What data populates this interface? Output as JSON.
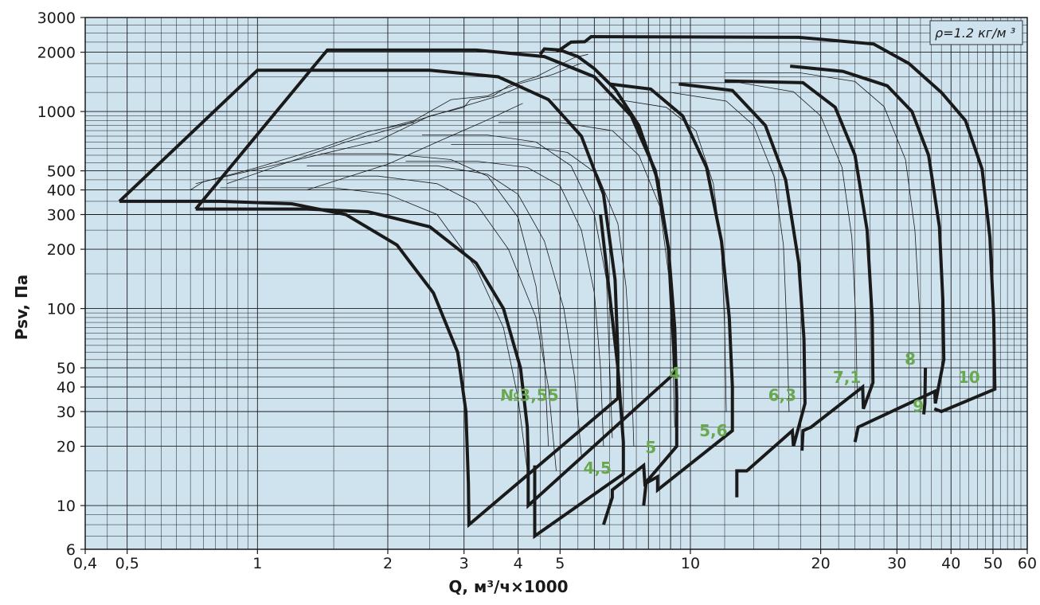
{
  "chart_data": {
    "type": "line",
    "xscale": "log",
    "yscale": "log",
    "xlim": [
      0.4,
      60
    ],
    "ylim": [
      6,
      3000
    ],
    "xlabel": "Q, м³/ч×1000",
    "ylabel": "Psv, Па",
    "annotation": "ρ=1.2 кг/м ³",
    "x_ticks": [
      {
        "v": 0.4,
        "label": "0,4"
      },
      {
        "v": 0.5,
        "label": "0,5"
      },
      {
        "v": 1,
        "label": "1"
      },
      {
        "v": 2,
        "label": "2"
      },
      {
        "v": 3,
        "label": "3"
      },
      {
        "v": 4,
        "label": "4"
      },
      {
        "v": 5,
        "label": "5"
      },
      {
        "v": 10,
        "label": "10"
      },
      {
        "v": 20,
        "label": "20"
      },
      {
        "v": 30,
        "label": "30"
      },
      {
        "v": 40,
        "label": "40"
      },
      {
        "v": 50,
        "label": "50"
      },
      {
        "v": 60,
        "label": "60"
      }
    ],
    "y_ticks": [
      {
        "v": 6,
        "label": "6"
      },
      {
        "v": 10,
        "label": "10"
      },
      {
        "v": 20,
        "label": "20"
      },
      {
        "v": 30,
        "label": "30"
      },
      {
        "v": 40,
        "label": "40"
      },
      {
        "v": 50,
        "label": "50"
      },
      {
        "v": 100,
        "label": "100"
      },
      {
        "v": 200,
        "label": "200"
      },
      {
        "v": 300,
        "label": "300"
      },
      {
        "v": 400,
        "label": "400"
      },
      {
        "v": 500,
        "label": "500"
      },
      {
        "v": 1000,
        "label": "1000"
      },
      {
        "v": 2000,
        "label": "2000"
      },
      {
        "v": 3000,
        "label": "3000"
      }
    ],
    "grid": true,
    "size_labels": [
      {
        "text": "№3,55",
        "x": 4.25,
        "y": 34
      },
      {
        "text": "4",
        "x": 9.2,
        "y": 44
      },
      {
        "text": "4,5",
        "x": 6.1,
        "y": 14.5
      },
      {
        "text": "5",
        "x": 8.1,
        "y": 18.5
      },
      {
        "text": "5,6",
        "x": 11.3,
        "y": 22.5
      },
      {
        "text": "6,3",
        "x": 16.3,
        "y": 34
      },
      {
        "text": "7,1",
        "x": 23.0,
        "y": 42
      },
      {
        "text": "8",
        "x": 32.2,
        "y": 52
      },
      {
        "text": "9",
        "x": 33.6,
        "y": 30
      },
      {
        "text": "10",
        "x": 44.0,
        "y": 42
      }
    ],
    "envelopes": [
      {
        "name": "№3,55",
        "points": [
          [
            0.48,
            350
          ],
          [
            0.82,
            350
          ],
          [
            1.2,
            340
          ],
          [
            1.6,
            300
          ],
          [
            2.1,
            210
          ],
          [
            2.55,
            120
          ],
          [
            2.9,
            60
          ],
          [
            3.03,
            30
          ],
          [
            3.07,
            13
          ],
          [
            3.08,
            8
          ],
          [
            6.8,
            35
          ],
          [
            6.8,
            60
          ],
          [
            6.7,
            140
          ],
          [
            6.3,
            380
          ],
          [
            5.6,
            750
          ],
          [
            4.7,
            1150
          ],
          [
            3.6,
            1500
          ],
          [
            2.5,
            1620
          ],
          [
            1.0,
            1620
          ],
          [
            0.48,
            350
          ]
        ]
      },
      {
        "name": "4",
        "points": [
          [
            0.72,
            320
          ],
          [
            1.3,
            320
          ],
          [
            1.8,
            310
          ],
          [
            2.5,
            260
          ],
          [
            3.2,
            170
          ],
          [
            3.7,
            100
          ],
          [
            4.05,
            50
          ],
          [
            4.2,
            25
          ],
          [
            4.22,
            17
          ],
          [
            4.22,
            10
          ],
          [
            9.2,
            47
          ],
          [
            9.1,
            90
          ],
          [
            8.9,
            200
          ],
          [
            8.3,
            500
          ],
          [
            7.3,
            950
          ],
          [
            6.0,
            1500
          ],
          [
            4.6,
            1900
          ],
          [
            3.2,
            2050
          ],
          [
            1.45,
            2050
          ],
          [
            1.35,
            1700
          ],
          [
            0.72,
            320
          ]
        ]
      },
      {
        "name": "4,5",
        "points": [
          [
            4.37,
            16
          ],
          [
            4.37,
            7
          ],
          [
            7.0,
            14.5
          ],
          [
            7.0,
            21
          ],
          [
            6.8,
            50
          ],
          [
            6.5,
            120
          ],
          [
            6.2,
            300
          ]
        ]
      },
      {
        "name": "5",
        "points": [
          [
            6.3,
            8
          ],
          [
            6.6,
            11
          ],
          [
            6.6,
            12
          ],
          [
            7.8,
            16
          ],
          [
            7.85,
            13
          ],
          [
            8.1,
            14
          ],
          [
            9.3,
            20
          ],
          [
            9.3,
            35
          ],
          [
            9.2,
            80
          ],
          [
            8.9,
            200
          ],
          [
            8.4,
            450
          ],
          [
            7.6,
            850
          ],
          [
            6.7,
            1300
          ],
          [
            6.0,
            1650
          ],
          [
            5.5,
            1900
          ],
          [
            5.0,
            2050
          ],
          [
            4.6,
            2080
          ],
          [
            4.5,
            1950
          ]
        ]
      },
      {
        "name": "5,6",
        "points": [
          [
            7.8,
            10
          ],
          [
            7.9,
            13
          ],
          [
            8.4,
            14
          ],
          [
            8.4,
            12
          ],
          [
            12.5,
            24
          ],
          [
            12.5,
            40
          ],
          [
            12.3,
            90
          ],
          [
            11.8,
            220
          ],
          [
            10.9,
            520
          ],
          [
            9.6,
            950
          ],
          [
            8.1,
            1300
          ],
          [
            6.5,
            1380
          ]
        ]
      },
      {
        "name": "6,3",
        "points": [
          [
            12.8,
            11
          ],
          [
            12.8,
            15
          ],
          [
            13.5,
            15
          ],
          [
            17.2,
            24
          ],
          [
            17.3,
            20
          ],
          [
            18.4,
            33
          ],
          [
            18.3,
            70
          ],
          [
            17.8,
            170
          ],
          [
            16.6,
            450
          ],
          [
            14.9,
            850
          ],
          [
            12.5,
            1280
          ],
          [
            9.4,
            1380
          ]
        ]
      },
      {
        "name": "7,1",
        "points": [
          [
            18.1,
            19
          ],
          [
            18.2,
            24
          ],
          [
            19.0,
            25
          ],
          [
            25.0,
            40
          ],
          [
            25.1,
            31
          ],
          [
            26.4,
            42
          ],
          [
            26.3,
            90
          ],
          [
            25.6,
            250
          ],
          [
            24.0,
            600
          ],
          [
            21.6,
            1050
          ],
          [
            18.2,
            1400
          ],
          [
            12.0,
            1430
          ]
        ]
      },
      {
        "name": "8",
        "points": [
          [
            24.0,
            21
          ],
          [
            24.4,
            25
          ],
          [
            36.7,
            38
          ],
          [
            36.8,
            33
          ],
          [
            38.5,
            55
          ],
          [
            38.3,
            110
          ],
          [
            37.6,
            260
          ],
          [
            35.5,
            600
          ],
          [
            32.5,
            1000
          ],
          [
            28.5,
            1350
          ],
          [
            22.5,
            1600
          ],
          [
            17.0,
            1700
          ]
        ]
      },
      {
        "name": "9",
        "points": [
          [
            34.6,
            29
          ],
          [
            34.8,
            33
          ],
          [
            34.9,
            50
          ]
        ]
      },
      {
        "name": "10",
        "points": [
          [
            36.6,
            31
          ],
          [
            38.0,
            30
          ],
          [
            50.5,
            39
          ],
          [
            50.2,
            90
          ],
          [
            49.2,
            230
          ],
          [
            47.2,
            510
          ],
          [
            43.2,
            900
          ],
          [
            38.0,
            1250
          ],
          [
            32.0,
            1750
          ],
          [
            26.5,
            2200
          ],
          [
            17.8,
            2380
          ],
          [
            5.9,
            2400
          ],
          [
            5.7,
            2260
          ],
          [
            5.3,
            2250
          ],
          [
            5.0,
            2060
          ],
          [
            4.9,
            2030
          ]
        ]
      }
    ],
    "thin_curves": [
      {
        "points": [
          [
            0.82,
            410
          ],
          [
            1.5,
            410
          ],
          [
            2.0,
            380
          ],
          [
            2.6,
            300
          ],
          [
            3.2,
            160
          ],
          [
            3.7,
            80
          ],
          [
            4.0,
            35
          ],
          [
            4.2,
            15
          ]
        ]
      },
      {
        "points": [
          [
            1.0,
            470
          ],
          [
            1.9,
            470
          ],
          [
            2.6,
            430
          ],
          [
            3.2,
            340
          ],
          [
            3.8,
            200
          ],
          [
            4.4,
            90
          ],
          [
            4.7,
            40
          ],
          [
            4.9,
            15
          ]
        ]
      },
      {
        "points": [
          [
            1.3,
            530
          ],
          [
            2.6,
            530
          ],
          [
            3.4,
            480
          ],
          [
            4.0,
            380
          ],
          [
            4.6,
            220
          ],
          [
            5.1,
            100
          ],
          [
            5.4,
            45
          ],
          [
            5.6,
            18
          ]
        ]
      },
      {
        "points": [
          [
            2.2,
            560
          ],
          [
            3.2,
            560
          ],
          [
            4.2,
            520
          ],
          [
            5.0,
            420
          ],
          [
            5.6,
            250
          ],
          [
            6.0,
            120
          ],
          [
            6.2,
            50
          ],
          [
            6.3,
            20
          ]
        ]
      },
      {
        "points": [
          [
            2.8,
            680
          ],
          [
            4.0,
            680
          ],
          [
            5.2,
            620
          ],
          [
            6.1,
            480
          ],
          [
            6.8,
            270
          ],
          [
            7.1,
            130
          ],
          [
            7.3,
            50
          ],
          [
            7.4,
            20
          ]
        ]
      },
      {
        "points": [
          [
            3.6,
            880
          ],
          [
            5.0,
            880
          ],
          [
            6.6,
            800
          ],
          [
            7.6,
            600
          ],
          [
            8.5,
            330
          ],
          [
            8.9,
            150
          ],
          [
            9.1,
            60
          ],
          [
            9.2,
            25
          ]
        ]
      },
      {
        "points": [
          [
            4.8,
            1150
          ],
          [
            6.8,
            1150
          ],
          [
            8.8,
            1050
          ],
          [
            10.3,
            800
          ],
          [
            11.3,
            430
          ],
          [
            11.8,
            200
          ],
          [
            12.0,
            80
          ],
          [
            12.1,
            30
          ]
        ]
      },
      {
        "points": [
          [
            6.3,
            1250
          ],
          [
            9.0,
            1250
          ],
          [
            12.1,
            1130
          ],
          [
            14.0,
            850
          ],
          [
            15.6,
            470
          ],
          [
            16.4,
            210
          ],
          [
            16.7,
            80
          ],
          [
            16.9,
            30
          ]
        ]
      },
      {
        "points": [
          [
            9.0,
            1400
          ],
          [
            13.0,
            1400
          ],
          [
            17.3,
            1260
          ],
          [
            20.0,
            950
          ],
          [
            22.4,
            520
          ],
          [
            23.6,
            230
          ],
          [
            24.1,
            90
          ],
          [
            24.3,
            35
          ]
        ]
      },
      {
        "points": [
          [
            12.0,
            1570
          ],
          [
            18.0,
            1570
          ],
          [
            24.0,
            1420
          ],
          [
            28.0,
            1060
          ],
          [
            31.4,
            570
          ],
          [
            33.0,
            250
          ],
          [
            33.8,
            100
          ],
          [
            34.1,
            35
          ]
        ]
      },
      {
        "points": [
          [
            1.4,
            610
          ],
          [
            2.0,
            610
          ],
          [
            2.8,
            570
          ],
          [
            3.4,
            470
          ],
          [
            4.0,
            290
          ],
          [
            4.4,
            130
          ],
          [
            4.6,
            55
          ],
          [
            4.7,
            20
          ]
        ]
      },
      {
        "points": [
          [
            2.4,
            760
          ],
          [
            3.4,
            760
          ],
          [
            4.4,
            700
          ],
          [
            5.3,
            530
          ],
          [
            6.0,
            300
          ],
          [
            6.4,
            140
          ],
          [
            6.5,
            55
          ],
          [
            6.6,
            22
          ]
        ]
      }
    ],
    "thin_stairs": [
      {
        "points": [
          [
            0.7,
            400
          ],
          [
            0.75,
            440
          ],
          [
            1.2,
            560
          ],
          [
            1.9,
            710
          ],
          [
            2.5,
            950
          ],
          [
            3.0,
            1050
          ],
          [
            3.1,
            1150
          ],
          [
            3.5,
            1200
          ],
          [
            3.8,
            1350
          ],
          [
            4.4,
            1500
          ],
          [
            5.0,
            1730
          ],
          [
            5.4,
            1880
          ],
          [
            5.8,
            1950
          ]
        ]
      },
      {
        "points": [
          [
            2.0,
            830
          ],
          [
            2.3,
            900
          ],
          [
            2.8,
            1150
          ],
          [
            3.4,
            1200
          ],
          [
            3.6,
            1270
          ],
          [
            4.0,
            1380
          ],
          [
            4.8,
            1540
          ],
          [
            5.6,
            1760
          ]
        ]
      },
      {
        "points": [
          [
            0.72,
            430
          ],
          [
            1.0,
            520
          ],
          [
            1.4,
            650
          ],
          [
            1.8,
            790
          ],
          [
            2.3,
            880
          ]
        ]
      },
      {
        "points": [
          [
            1.3,
            400
          ],
          [
            2.0,
            540
          ],
          [
            2.6,
            700
          ],
          [
            3.3,
            880
          ],
          [
            4.1,
            1100
          ]
        ]
      },
      {
        "points": [
          [
            0.85,
            430
          ],
          [
            1.6,
            700
          ],
          [
            2.1,
            830
          ],
          [
            2.4,
            920
          ],
          [
            3.6,
            1200
          ],
          [
            4.1,
            1350
          ]
        ]
      }
    ]
  }
}
